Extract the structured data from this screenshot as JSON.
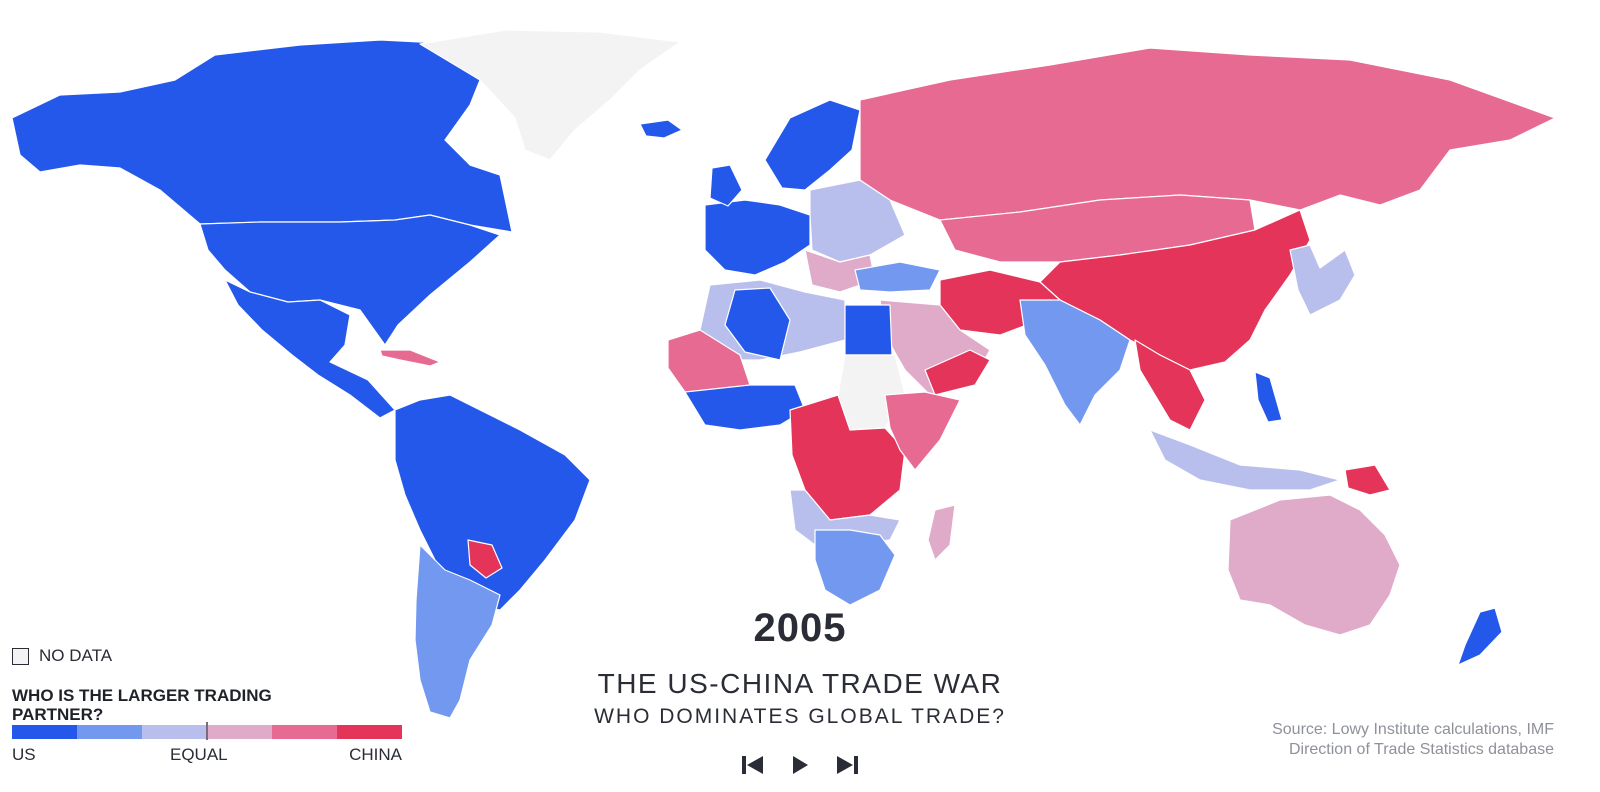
{
  "colors": {
    "us": "#2458ea",
    "us_mid": "#7398f0",
    "us_light": "#b9bfec",
    "china_light": "#e0aac9",
    "china_mid": "#e66a92",
    "china": "#e43459",
    "no_data": "#f3f3f4"
  },
  "map": {
    "year": "2005",
    "title": "THE US-CHINA TRADE WAR",
    "subtitle": "WHO DOMINATES GLOBAL TRADE?"
  },
  "legend": {
    "no_data_label": "NO DATA",
    "title": "WHO IS THE LARGER TRADING PARTNER?",
    "scale_labels": {
      "left": "US",
      "middle": "EQUAL",
      "right": "CHINA"
    }
  },
  "source": {
    "line1": "Source: Lowy Institute calculations, IMF",
    "line2": "Direction of Trade Statistics database"
  },
  "controls": {
    "previous_icon": "skip-previous-icon",
    "play_icon": "play-icon",
    "next_icon": "skip-next-icon"
  }
}
